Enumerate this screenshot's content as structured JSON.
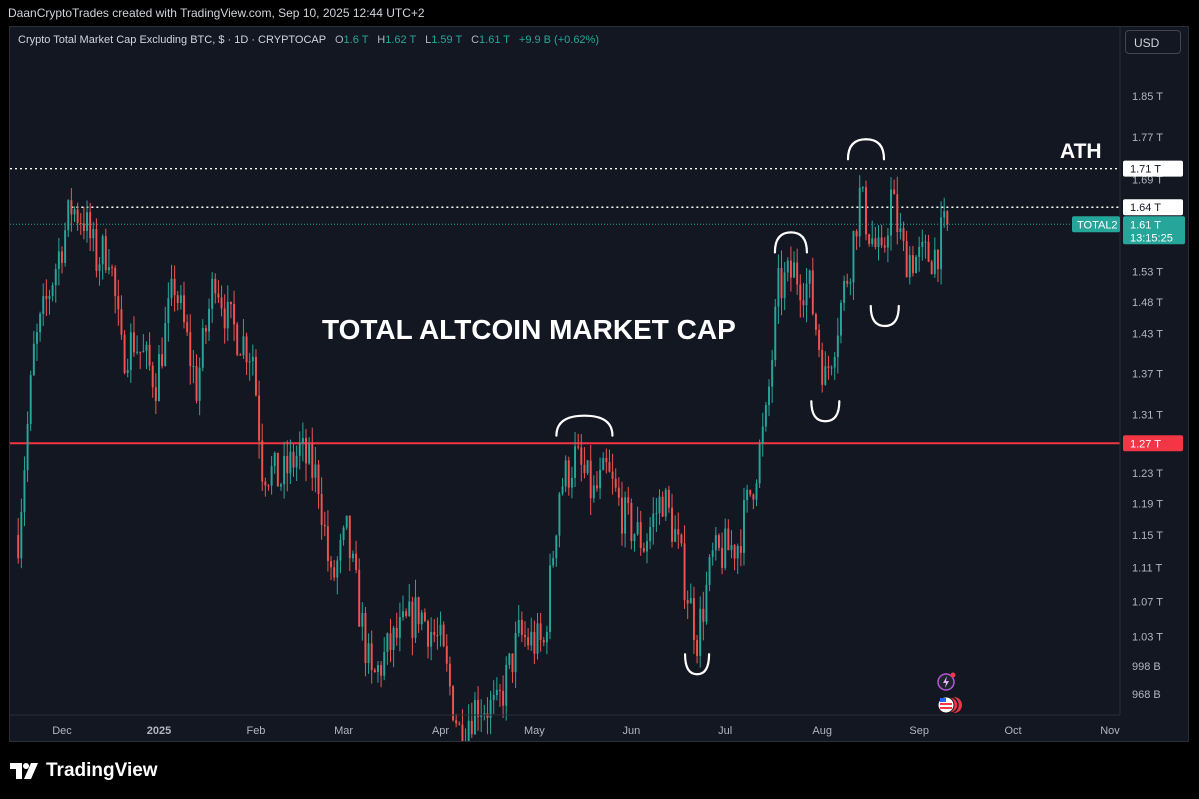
{
  "byline": "DaanCryptoTrades created with TradingView.com, Sep 10, 2025 12:44 UTC+2",
  "symbol": {
    "title": "Crypto Total Market Cap Excluding BTC, $ · 1D · CRYPTOCAP",
    "o_label": "O",
    "o_value": "1.6 T",
    "h_label": "H",
    "h_value": "1.62 T",
    "l_label": "L",
    "l_value": "1.59 T",
    "c_label": "C",
    "c_value": "1.61 T",
    "change": "+9.9 B (+0.62%)"
  },
  "currency": "USD",
  "brand": "TradingView",
  "colors": {
    "bull": "#26a69a",
    "bear": "#ef5350",
    "support": "#f23645",
    "background": "#131722"
  },
  "chart_data": {
    "type": "candlestick",
    "annotations": [
      "TOTAL ALTCOIN MARKET CAP",
      "ATH"
    ],
    "price_scale": "log",
    "y_ticks": [
      "1.85 T",
      "1.77 T",
      "1.69 T",
      "1.53 T",
      "1.48 T",
      "1.43 T",
      "1.37 T",
      "1.31 T",
      "1.23 T",
      "1.19 T",
      "1.15 T",
      "1.11 T",
      "1.07 T",
      "1.03 T",
      "998 B",
      "968 B"
    ],
    "y_tick_values": [
      1.85,
      1.77,
      1.69,
      1.53,
      1.48,
      1.43,
      1.37,
      1.31,
      1.23,
      1.19,
      1.15,
      1.11,
      1.07,
      1.03,
      0.998,
      0.968
    ],
    "x_ticks": [
      "Dec",
      "2025",
      "Feb",
      "Mar",
      "Apr",
      "May",
      "Jun",
      "Jul",
      "Aug",
      "Sep",
      "Oct",
      "Nov"
    ],
    "x_tick_dates": [
      "2024-12-01",
      "2025-01-01",
      "2025-02-01",
      "2025-03-01",
      "2025-04-01",
      "2025-05-01",
      "2025-06-01",
      "2025-07-01",
      "2025-08-01",
      "2025-09-01",
      "2025-10-01",
      "2025-11-01"
    ],
    "horizontal_levels": [
      {
        "label": "1.71 T",
        "value": 1.71,
        "style": "dotted-white"
      },
      {
        "label": "1.64 T",
        "value": 1.64,
        "style": "dotted-white"
      },
      {
        "label": "1.27 T",
        "value": 1.27,
        "style": "solid-red"
      }
    ],
    "current_price": {
      "series": "TOTAL2",
      "label": "1.61 T",
      "countdown": "13:15:25",
      "value": 1.61
    },
    "anchors": [
      {
        "date": "2024-11-17",
        "value": 1.15
      },
      {
        "date": "2024-11-22",
        "value": 1.4
      },
      {
        "date": "2024-11-28",
        "value": 1.52
      },
      {
        "date": "2024-12-04",
        "value": 1.64
      },
      {
        "date": "2024-12-08",
        "value": 1.62
      },
      {
        "date": "2024-12-12",
        "value": 1.55
      },
      {
        "date": "2024-12-16",
        "value": 1.57
      },
      {
        "date": "2024-12-20",
        "value": 1.4
      },
      {
        "date": "2024-12-24",
        "value": 1.42
      },
      {
        "date": "2024-12-31",
        "value": 1.36
      },
      {
        "date": "2025-01-06",
        "value": 1.51
      },
      {
        "date": "2025-01-13",
        "value": 1.35
      },
      {
        "date": "2025-01-19",
        "value": 1.53
      },
      {
        "date": "2025-01-23",
        "value": 1.45
      },
      {
        "date": "2025-01-31",
        "value": 1.4
      },
      {
        "date": "2025-02-03",
        "value": 1.24
      },
      {
        "date": "2025-02-09",
        "value": 1.22
      },
      {
        "date": "2025-02-15",
        "value": 1.26
      },
      {
        "date": "2025-02-21",
        "value": 1.22
      },
      {
        "date": "2025-02-25",
        "value": 1.09
      },
      {
        "date": "2025-03-02",
        "value": 1.15
      },
      {
        "date": "2025-03-10",
        "value": 0.98
      },
      {
        "date": "2025-03-16",
        "value": 1.02
      },
      {
        "date": "2025-03-25",
        "value": 1.06
      },
      {
        "date": "2025-04-01",
        "value": 1.02
      },
      {
        "date": "2025-04-07",
        "value": 0.93
      },
      {
        "date": "2025-04-13",
        "value": 0.96
      },
      {
        "date": "2025-04-19",
        "value": 0.95
      },
      {
        "date": "2025-04-26",
        "value": 1.03
      },
      {
        "date": "2025-05-04",
        "value": 1.02
      },
      {
        "date": "2025-05-09",
        "value": 1.21
      },
      {
        "date": "2025-05-14",
        "value": 1.25
      },
      {
        "date": "2025-05-20",
        "value": 1.2
      },
      {
        "date": "2025-05-24",
        "value": 1.23
      },
      {
        "date": "2025-05-30",
        "value": 1.17
      },
      {
        "date": "2025-06-05",
        "value": 1.14
      },
      {
        "date": "2025-06-11",
        "value": 1.2
      },
      {
        "date": "2025-06-15",
        "value": 1.15
      },
      {
        "date": "2025-06-22",
        "value": 1.03
      },
      {
        "date": "2025-06-27",
        "value": 1.12
      },
      {
        "date": "2025-07-05",
        "value": 1.14
      },
      {
        "date": "2025-07-10",
        "value": 1.22
      },
      {
        "date": "2025-07-14",
        "value": 1.3
      },
      {
        "date": "2025-07-18",
        "value": 1.5
      },
      {
        "date": "2025-07-23",
        "value": 1.53
      },
      {
        "date": "2025-07-28",
        "value": 1.5
      },
      {
        "date": "2025-08-02",
        "value": 1.36
      },
      {
        "date": "2025-08-06",
        "value": 1.45
      },
      {
        "date": "2025-08-10",
        "value": 1.55
      },
      {
        "date": "2025-08-13",
        "value": 1.66
      },
      {
        "date": "2025-08-16",
        "value": 1.6
      },
      {
        "date": "2025-08-20",
        "value": 1.54
      },
      {
        "date": "2025-08-23",
        "value": 1.66
      },
      {
        "date": "2025-08-27",
        "value": 1.56
      },
      {
        "date": "2025-09-01",
        "value": 1.55
      },
      {
        "date": "2025-09-06",
        "value": 1.56
      },
      {
        "date": "2025-09-10",
        "value": 1.61
      }
    ]
  }
}
